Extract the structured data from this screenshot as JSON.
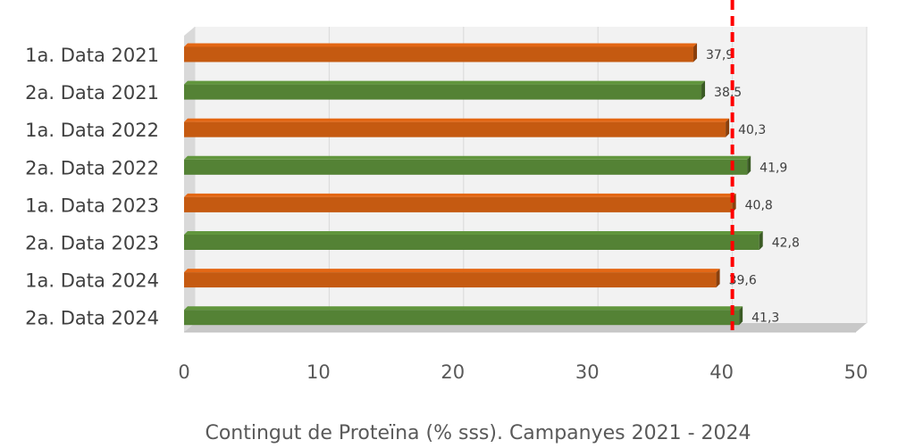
{
  "chart_data": {
    "type": "bar",
    "orientation": "horizontal",
    "categories": [
      "1a. Data 2021",
      "2a. Data 2021",
      "1a. Data 2022",
      "2a. Data 2022",
      "1a. Data 2023",
      "2a. Data 2023",
      "1a. Data 2024",
      "2a. Data 2024"
    ],
    "values": [
      37.9,
      38.5,
      40.3,
      41.9,
      40.8,
      42.8,
      39.6,
      41.3
    ],
    "data_labels": [
      "37,9",
      "38,5",
      "40,3",
      "41,9",
      "40,8",
      "42,8",
      "39,6",
      "41,3"
    ],
    "bar_colors": [
      "#c55a11",
      "#548235",
      "#c55a11",
      "#548235",
      "#c55a11",
      "#548235",
      "#c55a11",
      "#548235"
    ],
    "xlabel": "Contingut de Proteïna (% sss). Campanyes 2021 - 2024",
    "xlim": [
      0,
      50
    ],
    "xticks": [
      0,
      10,
      20,
      30,
      40,
      50
    ],
    "reference_line": {
      "value": 40.8,
      "color": "#ff0000",
      "style": "dashed"
    },
    "grid": true,
    "legend": "none"
  }
}
